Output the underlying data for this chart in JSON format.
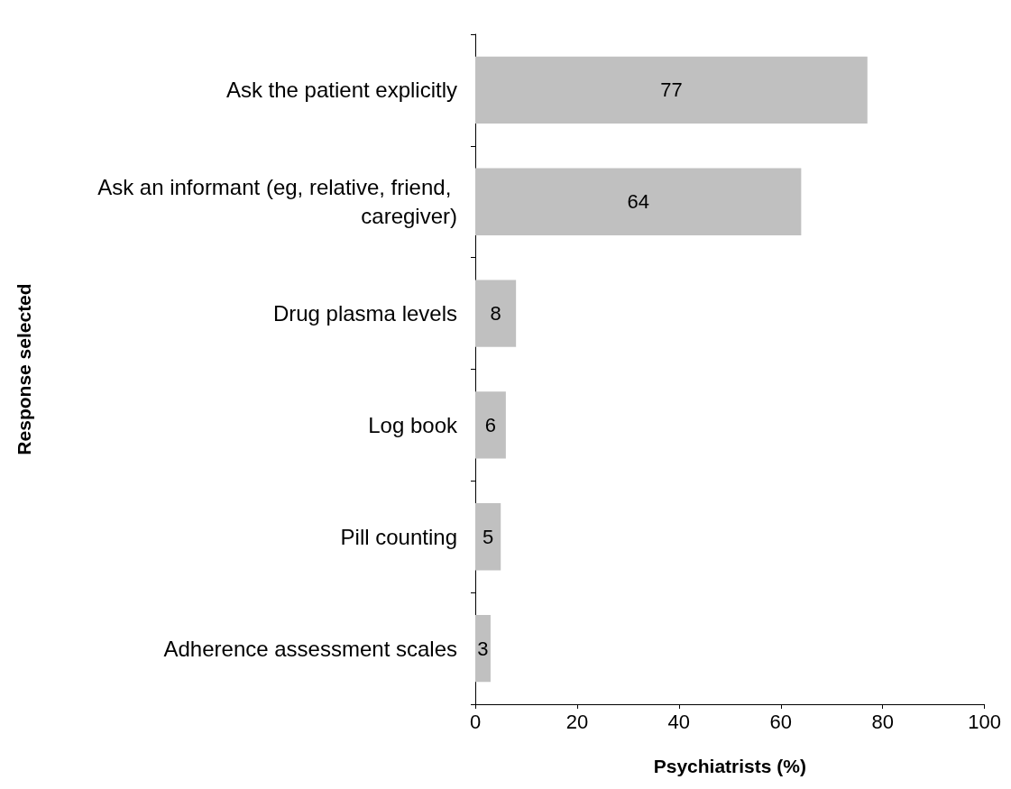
{
  "chart_data": {
    "type": "bar",
    "orientation": "horizontal",
    "xlabel": "Psychiatrists (%)",
    "ylabel": "Response selected",
    "categories": [
      "Ask the patient explicitly",
      "Ask an informant (eg, relative, friend, caregiver)",
      "Drug plasma levels",
      "Log book",
      "Pill counting",
      "Adherence assessment scales"
    ],
    "values": [
      77,
      64,
      8,
      6,
      5,
      3
    ],
    "color": "#c0c0c0",
    "xlim": [
      0,
      100
    ],
    "xticks": [
      0,
      20,
      40,
      60,
      80,
      100
    ],
    "grid": false,
    "data_labels": true
  }
}
